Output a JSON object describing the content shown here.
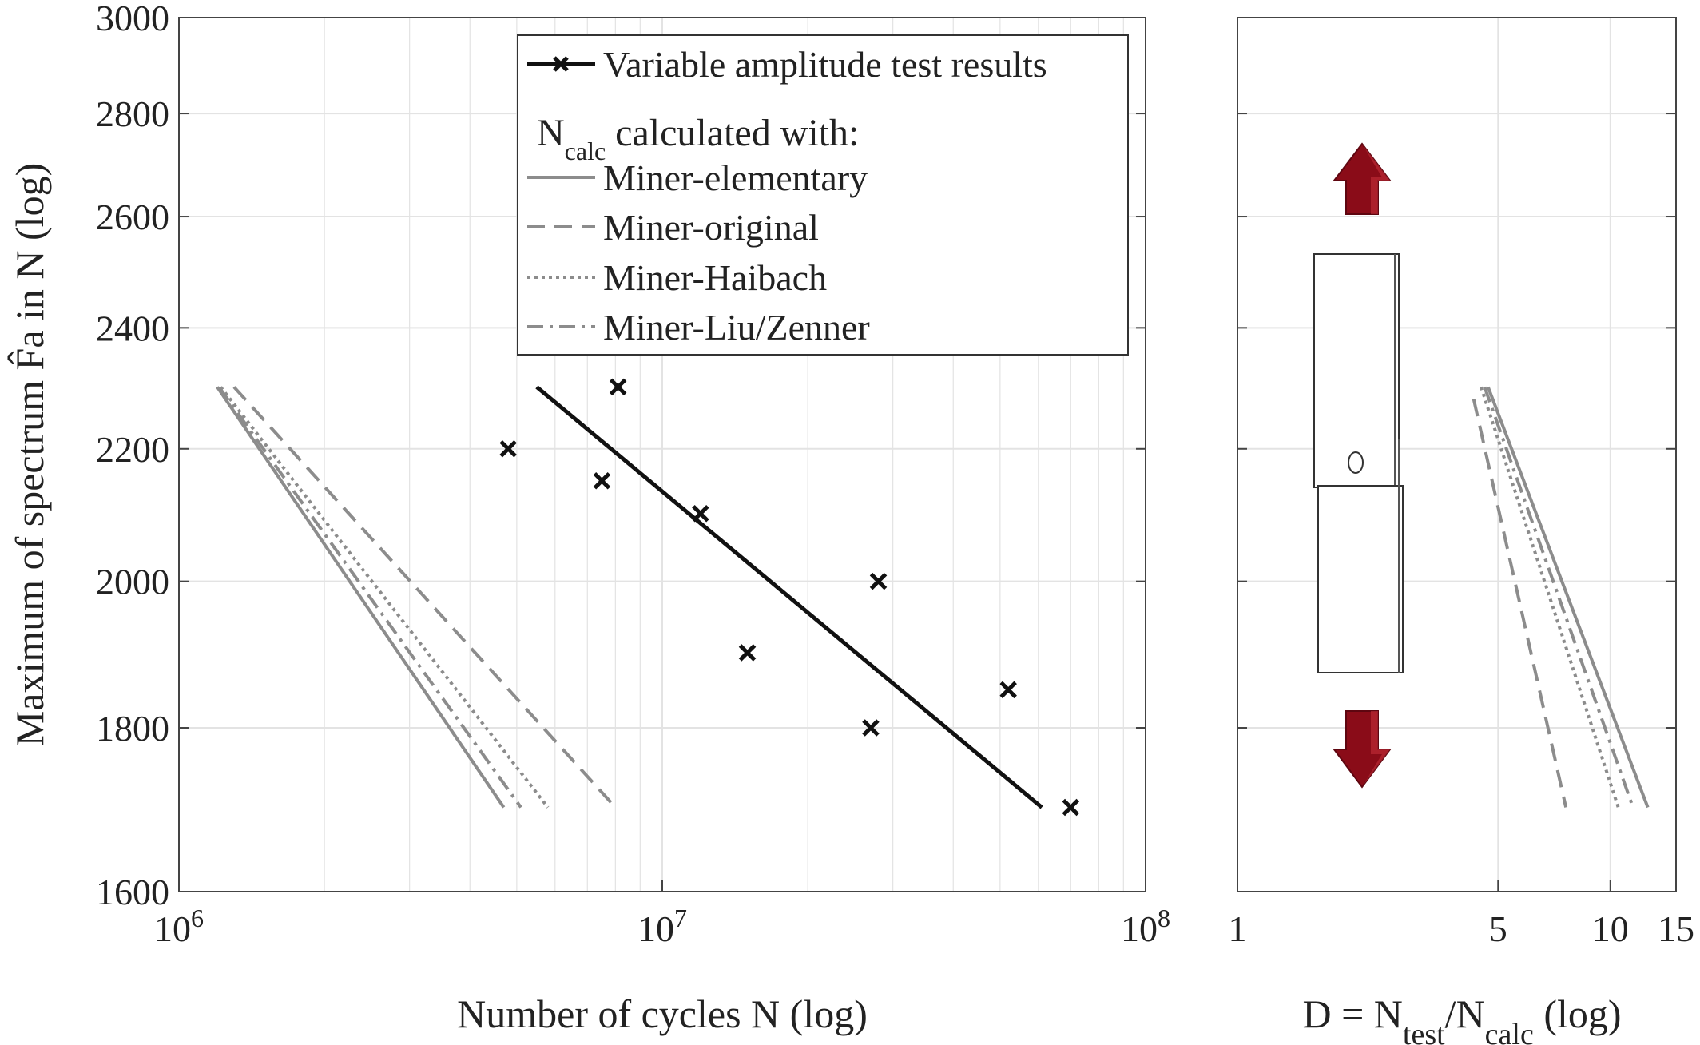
{
  "chart_data": [
    {
      "type": "line",
      "xscale": "log",
      "yscale": "log",
      "xlabel": "Number of cycles N (log)",
      "ylabel": "Maximum of spectrum F̂a in N (log)",
      "xlim": [
        1000000,
        100000000
      ],
      "ylim": [
        1600,
        3000
      ],
      "grid": true,
      "x_ticks": [
        {
          "value": 1000000,
          "base": "10",
          "exp": "6"
        },
        {
          "value": 10000000,
          "base": "10",
          "exp": "7"
        },
        {
          "value": 100000000,
          "base": "10",
          "exp": "8"
        }
      ],
      "y_ticks": [
        1600,
        1800,
        2000,
        2200,
        2400,
        2600,
        2800,
        3000
      ],
      "y_tick_labels": [
        "1600",
        "1800",
        "2000",
        "2200",
        "2400",
        "2600",
        "2800",
        "3000"
      ],
      "test_points": {
        "name": "Variable amplitude test results",
        "points": [
          {
            "x": 4800000,
            "y": 2200
          },
          {
            "x": 7500000,
            "y": 2150
          },
          {
            "x": 8100000,
            "y": 2300
          },
          {
            "x": 12000000,
            "y": 2100
          },
          {
            "x": 15000000,
            "y": 1900
          },
          {
            "x": 27000000,
            "y": 1800
          },
          {
            "x": 28000000,
            "y": 2000
          },
          {
            "x": 52000000,
            "y": 1850
          },
          {
            "x": 70000000,
            "y": 1700
          }
        ]
      },
      "series": [
        {
          "name": "Variable amplitude test results",
          "style": "solid-black",
          "x": [
            5500000,
            61000000
          ],
          "y": [
            2300,
            1700
          ]
        },
        {
          "name": "Miner-elementary",
          "style": "solid",
          "x": [
            1200000,
            4700000
          ],
          "y": [
            2300,
            1700
          ]
        },
        {
          "name": "Miner-original",
          "style": "dashed",
          "x": [
            1300000,
            8000000
          ],
          "y": [
            2300,
            1700
          ]
        },
        {
          "name": "Miner-Haibach",
          "style": "dotted",
          "x": [
            1220000,
            5800000
          ],
          "y": [
            2300,
            1700
          ]
        },
        {
          "name": "Miner-Liu/Zenner",
          "style": "dashdot",
          "x": [
            1210000,
            5100000
          ],
          "y": [
            2300,
            1700
          ]
        }
      ],
      "legend": {
        "placement": "top-right",
        "title_main": "N",
        "title_sub": "calc",
        "title_rest": " calculated with:"
      }
    },
    {
      "type": "line",
      "xscale": "log",
      "yscale": "log",
      "xlabel_main": "D = N",
      "xlabel_sub1": "test",
      "xlabel_mid": "/N",
      "xlabel_sub2": "calc",
      "xlabel_end": " (log)",
      "xlim": [
        1,
        15
      ],
      "ylim": [
        1600,
        3000
      ],
      "grid": true,
      "x_ticks": [
        1,
        5,
        10,
        15
      ],
      "x_tick_labels": [
        "1",
        "5",
        "10",
        "15"
      ],
      "series": [
        {
          "name": "Miner-elementary",
          "style": "solid",
          "x": [
            4.7,
            12.6
          ],
          "y": [
            2300,
            1700
          ]
        },
        {
          "name": "Miner-original",
          "style": "dashed",
          "x": [
            4.3,
            7.6
          ],
          "y": [
            2280,
            1700
          ]
        },
        {
          "name": "Miner-Haibach",
          "style": "dotted",
          "x": [
            4.5,
            10.5
          ],
          "y": [
            2300,
            1700
          ]
        },
        {
          "name": "Miner-Liu/Zenner",
          "style": "dashdot",
          "x": [
            4.6,
            11.5
          ],
          "y": [
            2300,
            1700
          ]
        }
      ]
    }
  ],
  "colors": {
    "test": "#111111",
    "calc": "#8c8c8c",
    "grid": "#e3e3e3",
    "axis": "#444444",
    "arrow": "#8a0c18",
    "arrow_highlight": "#c8323c"
  }
}
